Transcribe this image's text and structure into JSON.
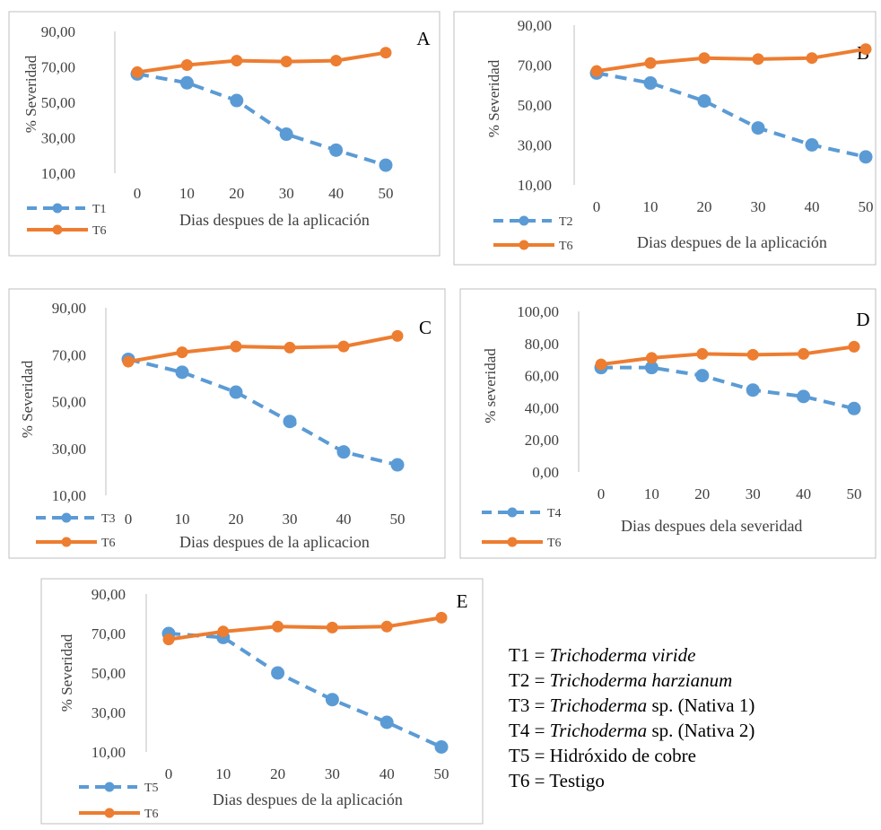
{
  "colors": {
    "blue": "#5b9bd5",
    "orange": "#ed7d31",
    "axis": "#bfbfbf",
    "frame": "#bfbfbf",
    "text": "#404040"
  },
  "chart_data": [
    {
      "type": "line",
      "panel": "A",
      "categories": [
        "0",
        "10",
        "20",
        "30",
        "40",
        "50"
      ],
      "ylabel": "% Severidad",
      "xlabel": "Dias despues de la aplicación",
      "ylim": [
        10,
        90
      ],
      "yticks": [
        "90,00",
        "70,00",
        "50,00",
        "30,00",
        "10,00"
      ],
      "legend_position": "bottom-left",
      "series": [
        {
          "name": "T1",
          "style": "dashed",
          "values": [
            66,
            61,
            51,
            32,
            23,
            14.5
          ]
        },
        {
          "name": "T6",
          "style": "solid",
          "values": [
            67,
            71,
            73.5,
            73,
            73.5,
            78
          ]
        }
      ]
    },
    {
      "type": "line",
      "panel": "B",
      "categories": [
        "0",
        "10",
        "20",
        "30",
        "40",
        "50"
      ],
      "ylabel": "% Severidad",
      "xlabel": "Dias despues de la aplicación",
      "ylim": [
        10,
        90
      ],
      "yticks": [
        "90,00",
        "70,00",
        "50,00",
        "30,00",
        "10,00"
      ],
      "legend_position": "bottom-left",
      "series": [
        {
          "name": "T2",
          "style": "dashed",
          "values": [
            66,
            61,
            52,
            38.5,
            30,
            24
          ]
        },
        {
          "name": "T6",
          "style": "solid",
          "values": [
            67,
            71,
            73.5,
            73,
            73.5,
            78
          ]
        }
      ]
    },
    {
      "type": "line",
      "panel": "C",
      "categories": [
        "0",
        "10",
        "20",
        "30",
        "40",
        "50"
      ],
      "ylabel": "% Severidad",
      "xlabel": "Dias despues de la aplicacion",
      "ylim": [
        10,
        90
      ],
      "yticks": [
        "90,00",
        "70,00",
        "50,00",
        "30,00",
        "10,00"
      ],
      "legend_position": "bottom-left",
      "series": [
        {
          "name": "T3",
          "style": "dashed",
          "values": [
            68,
            62.5,
            54,
            41.5,
            28.5,
            23
          ]
        },
        {
          "name": "T6",
          "style": "solid",
          "values": [
            67,
            71,
            73.5,
            73,
            73.5,
            78
          ]
        }
      ]
    },
    {
      "type": "line",
      "panel": "D",
      "categories": [
        "0",
        "10",
        "20",
        "30",
        "40",
        "50"
      ],
      "ylabel": "% severidad",
      "xlabel": "Dias despues dela severidad",
      "ylim": [
        0,
        100
      ],
      "yticks": [
        "100,00",
        "80,00",
        "60,00",
        "40,00",
        "20,00",
        "0,00"
      ],
      "legend_position": "bottom-left",
      "series": [
        {
          "name": "T4",
          "style": "dashed",
          "values": [
            65,
            65,
            60,
            51,
            47,
            39.5
          ]
        },
        {
          "name": "T6",
          "style": "solid",
          "values": [
            67,
            71,
            73.5,
            73,
            73.5,
            78
          ]
        }
      ]
    },
    {
      "type": "line",
      "panel": "E",
      "categories": [
        "0",
        "10",
        "20",
        "30",
        "40",
        "50"
      ],
      "ylabel": "% Severidad",
      "xlabel": "Dias despues de la aplicación",
      "ylim": [
        10,
        90
      ],
      "yticks": [
        "90,00",
        "70,00",
        "50,00",
        "30,00",
        "10,00"
      ],
      "legend_position": "bottom-left",
      "series": [
        {
          "name": "T5",
          "style": "dashed",
          "values": [
            70,
            68,
            50,
            36.5,
            25,
            12.5
          ]
        },
        {
          "name": "T6",
          "style": "solid",
          "values": [
            67,
            71,
            73.5,
            73,
            73.5,
            78
          ]
        }
      ]
    }
  ],
  "key": [
    {
      "code": "T1 = ",
      "italic": "Trichoderma viride",
      "rest": ""
    },
    {
      "code": "T2 = ",
      "italic": "Trichoderma harzianum",
      "rest": ""
    },
    {
      "code": "T3 = ",
      "italic": "Trichoderma",
      "rest": " sp. (Nativa 1)"
    },
    {
      "code": "T4 = ",
      "italic": "Trichoderma",
      "rest": " sp. (Nativa 2)"
    },
    {
      "code": "T5 = Hidróxido de cobre",
      "italic": "",
      "rest": ""
    },
    {
      "code": "T6 = Testigo",
      "italic": "",
      "rest": ""
    }
  ]
}
